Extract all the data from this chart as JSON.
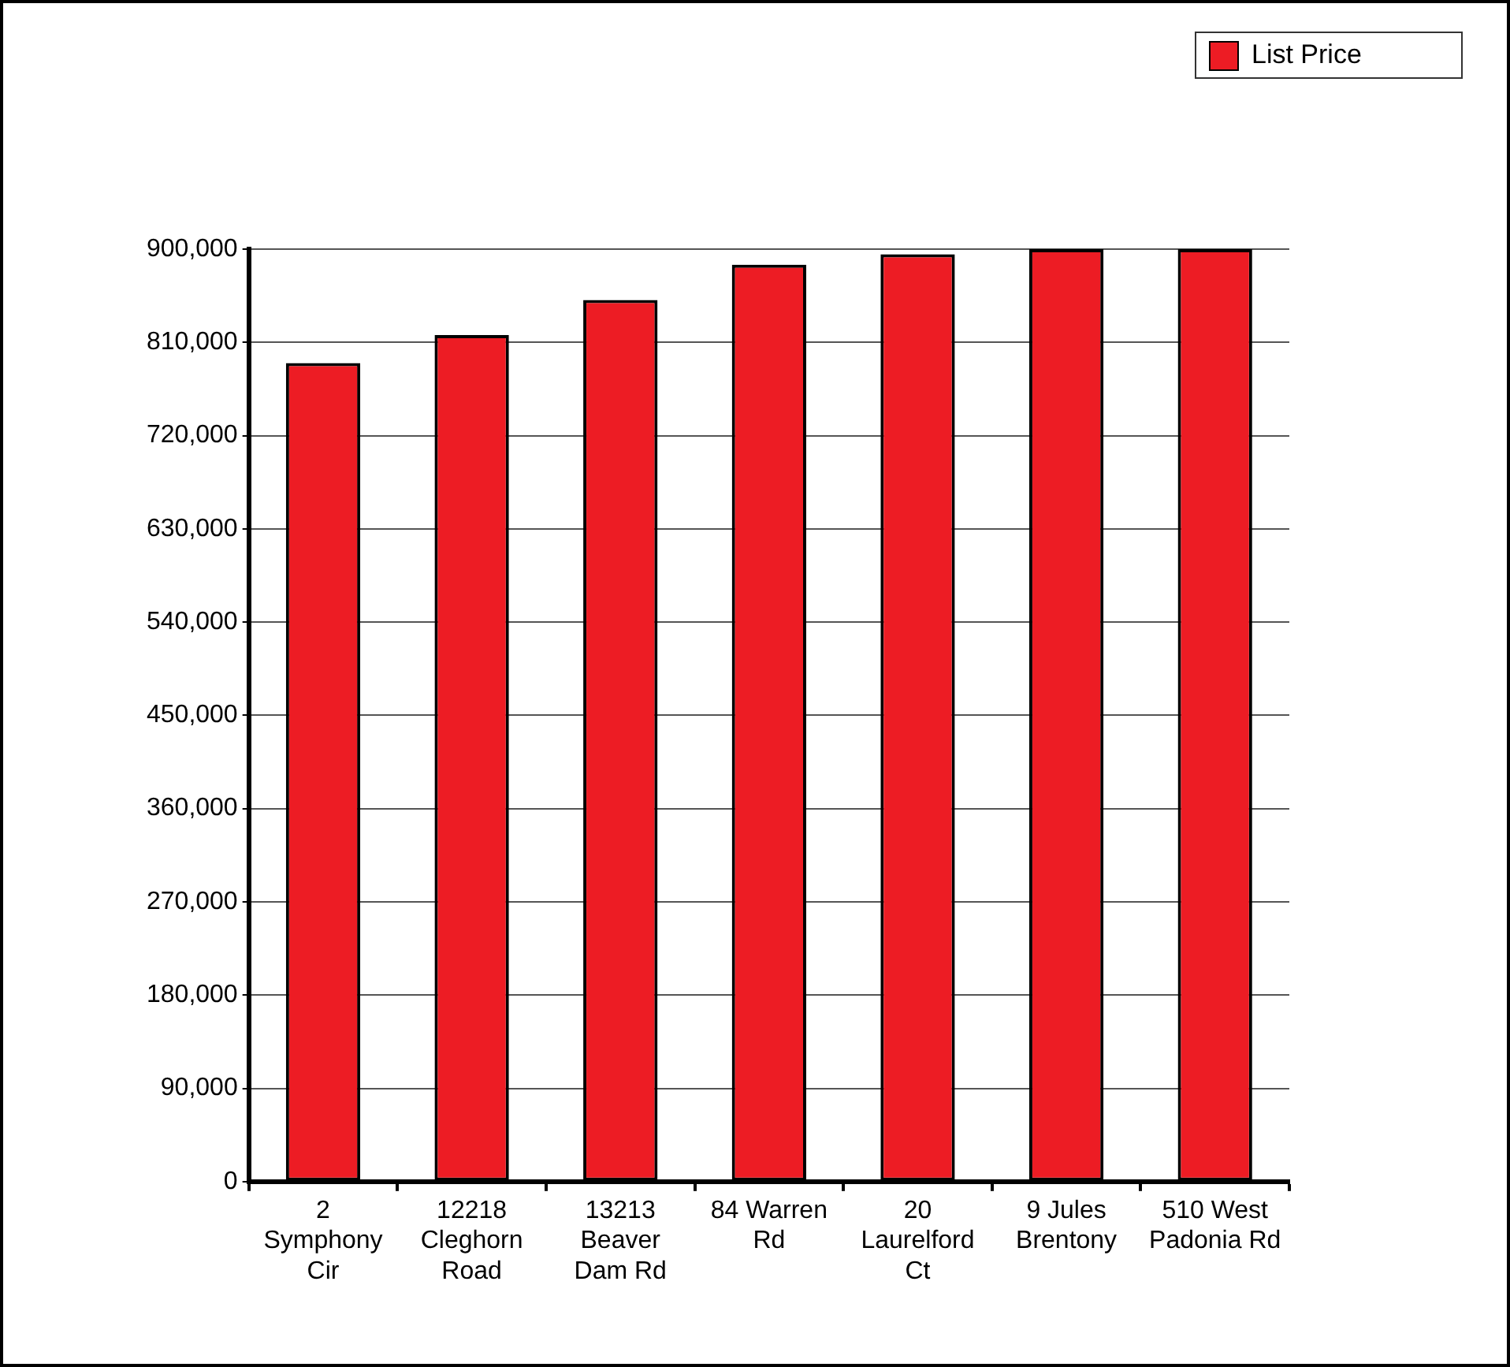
{
  "chart_data": {
    "type": "bar",
    "categories": [
      "2 Symphony Cir",
      "12218 Cleghorn Road",
      "13213 Beaver Dam Rd",
      "84 Warren Rd",
      "20 Laurelford Ct",
      "9 Jules Brentony",
      "510 West Padonia Rd"
    ],
    "series": [
      {
        "name": "List Price",
        "color": "#ed1c24",
        "values": [
          790000,
          817000,
          851000,
          885000,
          895000,
          900000,
          900000
        ]
      }
    ],
    "ylim": [
      0,
      900000
    ],
    "yticks": [
      {
        "value": 0,
        "label": "0"
      },
      {
        "value": 90000,
        "label": "90,000"
      },
      {
        "value": 180000,
        "label": "180,000"
      },
      {
        "value": 270000,
        "label": "270,000"
      },
      {
        "value": 360000,
        "label": "360,000"
      },
      {
        "value": 450000,
        "label": "450,000"
      },
      {
        "value": 540000,
        "label": "540,000"
      },
      {
        "value": 630000,
        "label": "630,000"
      },
      {
        "value": 720000,
        "label": "720,000"
      },
      {
        "value": 810000,
        "label": "810,000"
      },
      {
        "value": 900000,
        "label": "900,000"
      }
    ],
    "grid": "y",
    "legend": "top right"
  }
}
